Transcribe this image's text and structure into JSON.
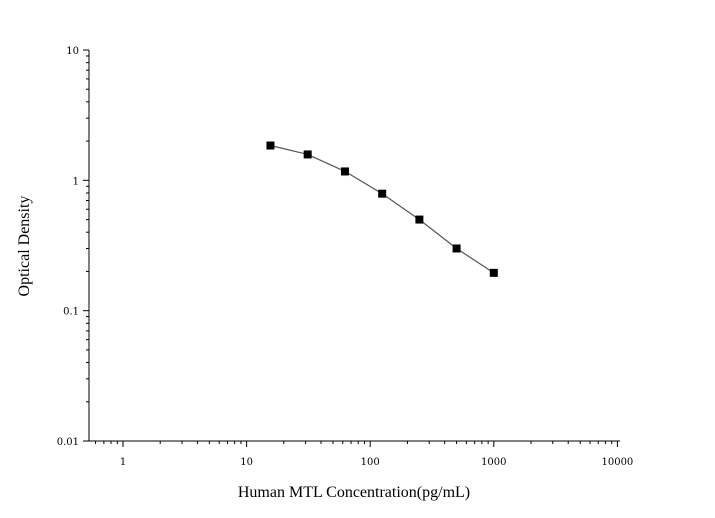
{
  "chart_data": {
    "type": "line",
    "title": "",
    "xlabel": "Human MTL Concentration(pg/mL)",
    "ylabel": "Optical Density",
    "x_scale": "log",
    "y_scale": "log",
    "xlim": [
      0.5,
      10000
    ],
    "ylim": [
      0.01,
      10
    ],
    "x_ticks": [
      "1",
      "10",
      "100",
      "1000",
      "10000"
    ],
    "y_ticks": [
      "10",
      "1",
      "0.1",
      "0.01"
    ],
    "grid": false,
    "legend": "none",
    "series": [
      {
        "color": "#000000",
        "marker": "square",
        "x": [
          15.6,
          31.2,
          62.5,
          125,
          250,
          500,
          1000
        ],
        "y": [
          1.85,
          1.58,
          1.17,
          0.79,
          0.5,
          0.3,
          0.195
        ]
      }
    ]
  }
}
